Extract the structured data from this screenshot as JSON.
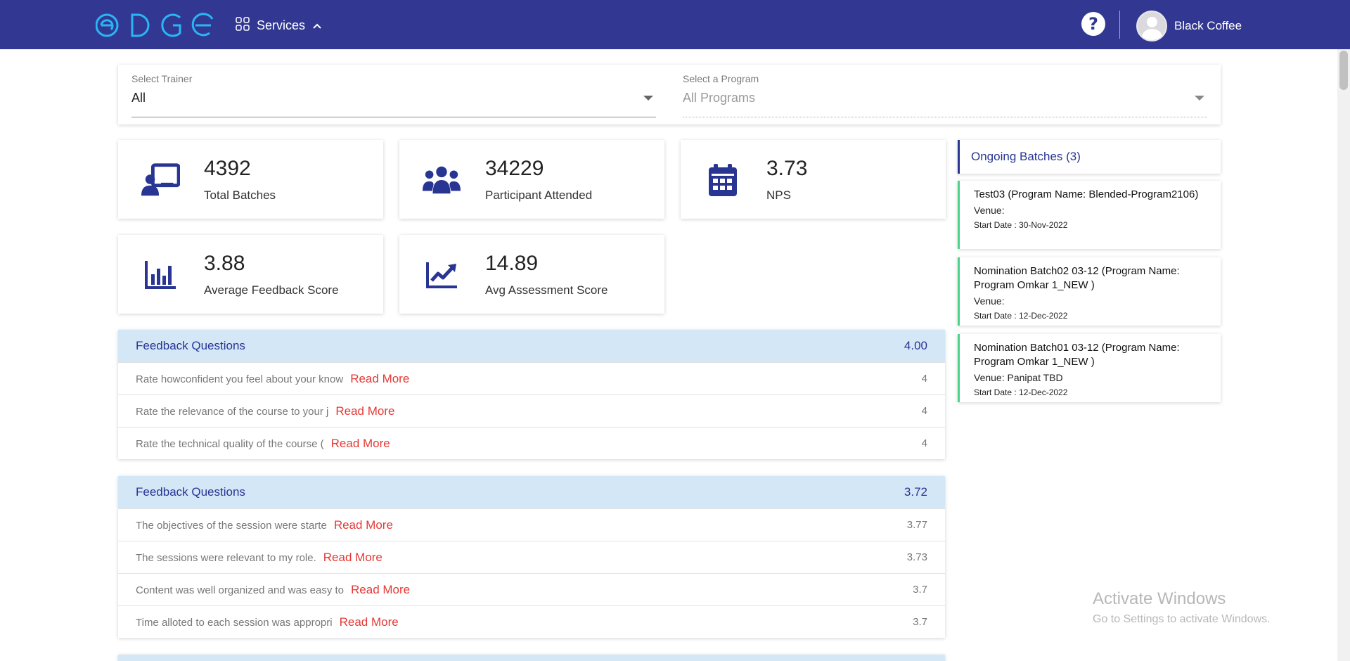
{
  "header": {
    "logo_text": "EDGE",
    "services_label": "Services",
    "help_symbol": "?",
    "user_name": "Black Coffee",
    "bg_color": "#323891"
  },
  "filters": {
    "trainer_label": "Select Trainer",
    "trainer_value": "All",
    "program_label": "Select a Program",
    "program_value": "All Programs"
  },
  "stats": [
    {
      "value": "4392",
      "label": "Total Batches",
      "icon": "classroom-icon"
    },
    {
      "value": "34229",
      "label": "Participant Attended",
      "icon": "users-icon"
    },
    {
      "value": "3.73",
      "label": "NPS",
      "icon": "calendar-icon"
    },
    {
      "value": "3.88",
      "label": "Average Feedback Score",
      "icon": "bar-chart-icon"
    },
    {
      "value": "14.89",
      "label": "Avg Assessment Score",
      "icon": "trend-chart-icon"
    }
  ],
  "feedback_sections": [
    {
      "title": "Feedback Questions",
      "score": "4.00",
      "rows": [
        {
          "question": "Rate howconfident you feel about your know",
          "link": "Read More",
          "value": "4"
        },
        {
          "question": "Rate the relevance of the course to your j",
          "link": "Read More",
          "value": "4"
        },
        {
          "question": "Rate the technical quality of the course (",
          "link": "Read More",
          "value": "4"
        }
      ]
    },
    {
      "title": "Feedback Questions",
      "score": "3.72",
      "rows": [
        {
          "question": "The objectives of the session were starte",
          "link": "Read More",
          "value": "3.77"
        },
        {
          "question": "The sessions were relevant to my role.",
          "link": "Read More",
          "value": "3.73"
        },
        {
          "question": "Content was well organized and was easy to",
          "link": "Read More",
          "value": "3.7"
        },
        {
          "question": "Time alloted to each session was appropri",
          "link": "Read More",
          "value": "3.7"
        }
      ]
    }
  ],
  "ongoing": {
    "title": "Ongoing Batches (3)",
    "batches": [
      {
        "name": "Test03 (Program Name: Blended-Program2106)",
        "venue": "Venue:",
        "start": "Start Date : 30-Nov-2022"
      },
      {
        "name": "Nomination Batch02 03-12 (Program Name: Program Omkar 1_NEW )",
        "venue": "Venue:",
        "start": "Start Date : 12-Dec-2022"
      },
      {
        "name": "Nomination Batch01 03-12 (Program Name: Program Omkar 1_NEW )",
        "venue": "Venue: Panipat TBD",
        "start": "Start Date : 12-Dec-2022"
      }
    ]
  },
  "watermark": {
    "line1": "Activate Windows",
    "line2": "Go to Settings to activate Windows."
  }
}
